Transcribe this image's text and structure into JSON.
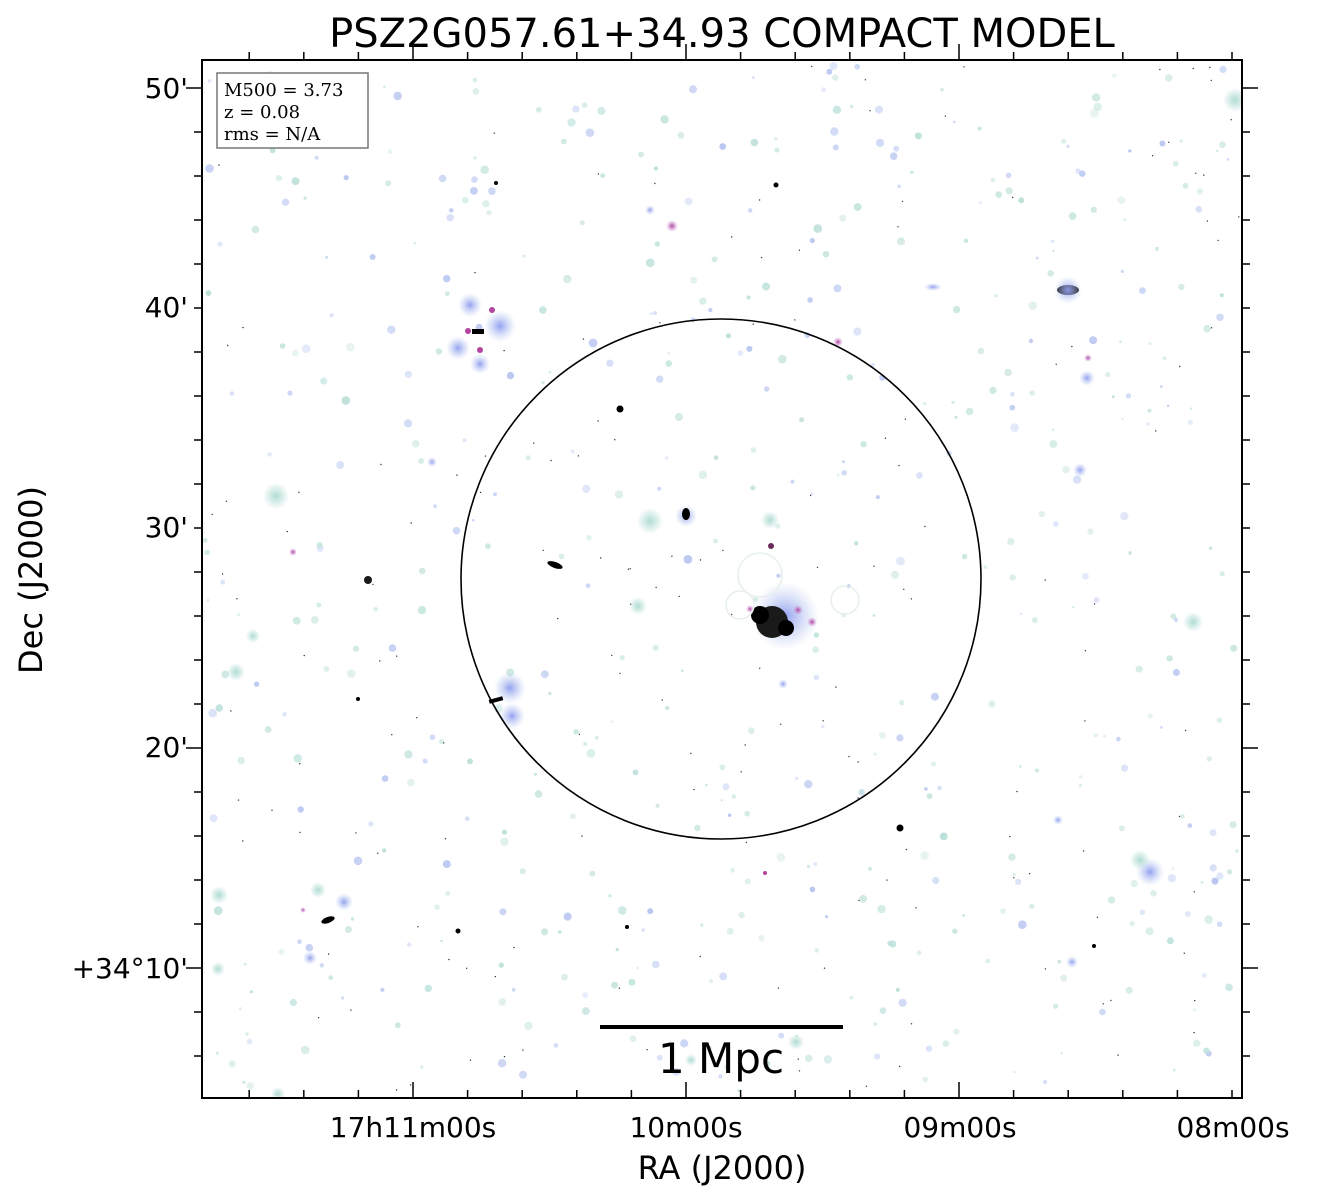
{
  "title": "PSZ2G057.61+34.93 COMPACT MODEL",
  "info_box": {
    "m500": "M500 = 3.73",
    "z": "z = 0.08",
    "rms": "rms = N/A"
  },
  "axes": {
    "xlabel": "RA (J2000)",
    "ylabel": "Dec (J2000)",
    "x_ticks": [
      "17h11m00s",
      "10m00s",
      "09m00s",
      "08m00s"
    ],
    "y_ticks": [
      "+34°10'",
      "20'",
      "30'",
      "40'",
      "50'"
    ]
  },
  "scale_bar": {
    "label": "1 Mpc"
  },
  "colors": {
    "frame": "#000000",
    "background": "#ffffff",
    "source_teal": "#b9ded6",
    "source_blue": "#a9b4ee",
    "source_magenta": "#c061b5",
    "source_core": "#000000"
  }
}
